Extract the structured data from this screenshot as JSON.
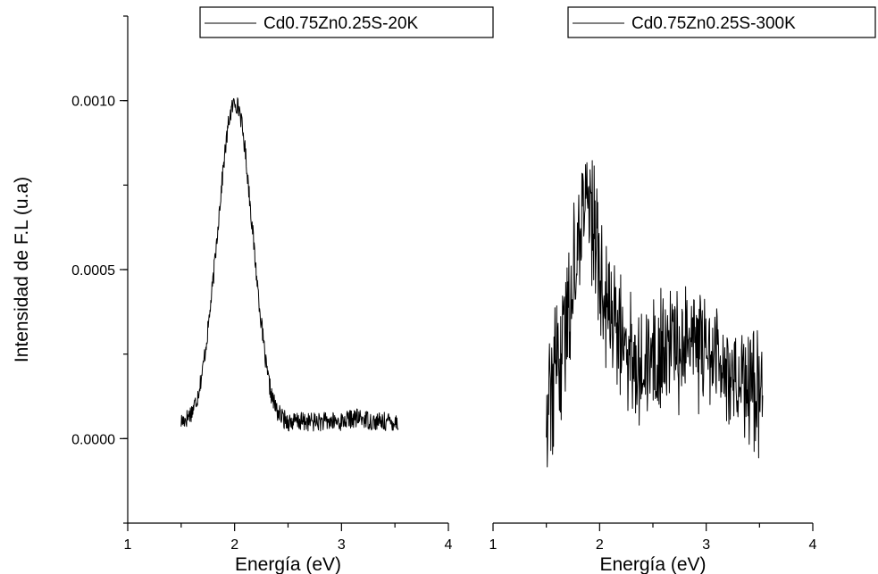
{
  "chart_data": [
    {
      "type": "line",
      "ylabel": "Intensidad de F.L (u.a)",
      "xlabel": "Energía (eV)",
      "xlim": [
        1,
        4
      ],
      "ylim": [
        -0.00025,
        0.00125
      ],
      "x_ticks": [
        "1",
        "2",
        "3",
        "4"
      ],
      "y_ticks": [
        "0.0000",
        "0.0005",
        "0.0010"
      ],
      "legend_position": "top-right",
      "series": [
        {
          "name": "Cd0.75Zn0.25S-20K",
          "color": "#000000",
          "x": [
            1.5,
            1.55,
            1.6,
            1.65,
            1.7,
            1.75,
            1.8,
            1.85,
            1.9,
            1.95,
            2.0,
            2.05,
            2.1,
            2.15,
            2.2,
            2.25,
            2.3,
            2.35,
            2.4,
            2.45,
            2.5,
            2.6,
            2.7,
            2.8,
            2.9,
            3.0,
            3.1,
            3.2,
            3.3,
            3.4,
            3.53
          ],
          "y": [
            5e-05,
            6e-05,
            8e-05,
            0.00012,
            0.0002,
            0.00032,
            0.00047,
            0.00065,
            0.00082,
            0.00095,
            0.001,
            0.00097,
            0.00085,
            0.00068,
            0.0005,
            0.00034,
            0.0002,
            0.00012,
            8e-05,
            6e-05,
            5e-05,
            5e-05,
            5e-05,
            5e-05,
            5e-05,
            5e-05,
            6e-05,
            6e-05,
            5e-05,
            5e-05,
            5e-05
          ]
        }
      ]
    },
    {
      "type": "line",
      "xlabel": "Energía (eV)",
      "xlim": [
        1,
        4
      ],
      "ylim": [
        -0.00025,
        0.00125
      ],
      "x_ticks": [
        "1",
        "2",
        "3",
        "4"
      ],
      "legend_position": "top-right",
      "series": [
        {
          "name": "Cd0.75Zn0.25S-300K",
          "color": "#000000",
          "x": [
            1.5,
            1.55,
            1.6,
            1.65,
            1.7,
            1.75,
            1.8,
            1.85,
            1.9,
            1.95,
            2.0,
            2.05,
            2.1,
            2.2,
            2.3,
            2.4,
            2.5,
            2.6,
            2.7,
            2.8,
            2.9,
            3.0,
            3.1,
            3.2,
            3.3,
            3.4,
            3.53
          ],
          "y": [
            0.0001,
            0.00016,
            0.0002,
            0.00026,
            0.00036,
            0.00048,
            0.0006,
            0.00068,
            0.00072,
            0.00062,
            0.0005,
            0.00042,
            0.00036,
            0.00028,
            0.00025,
            0.00024,
            0.00024,
            0.00026,
            0.00027,
            0.00029,
            0.00028,
            0.00027,
            0.00024,
            0.0002,
            0.00018,
            0.00016,
            0.00014
          ]
        }
      ]
    }
  ]
}
